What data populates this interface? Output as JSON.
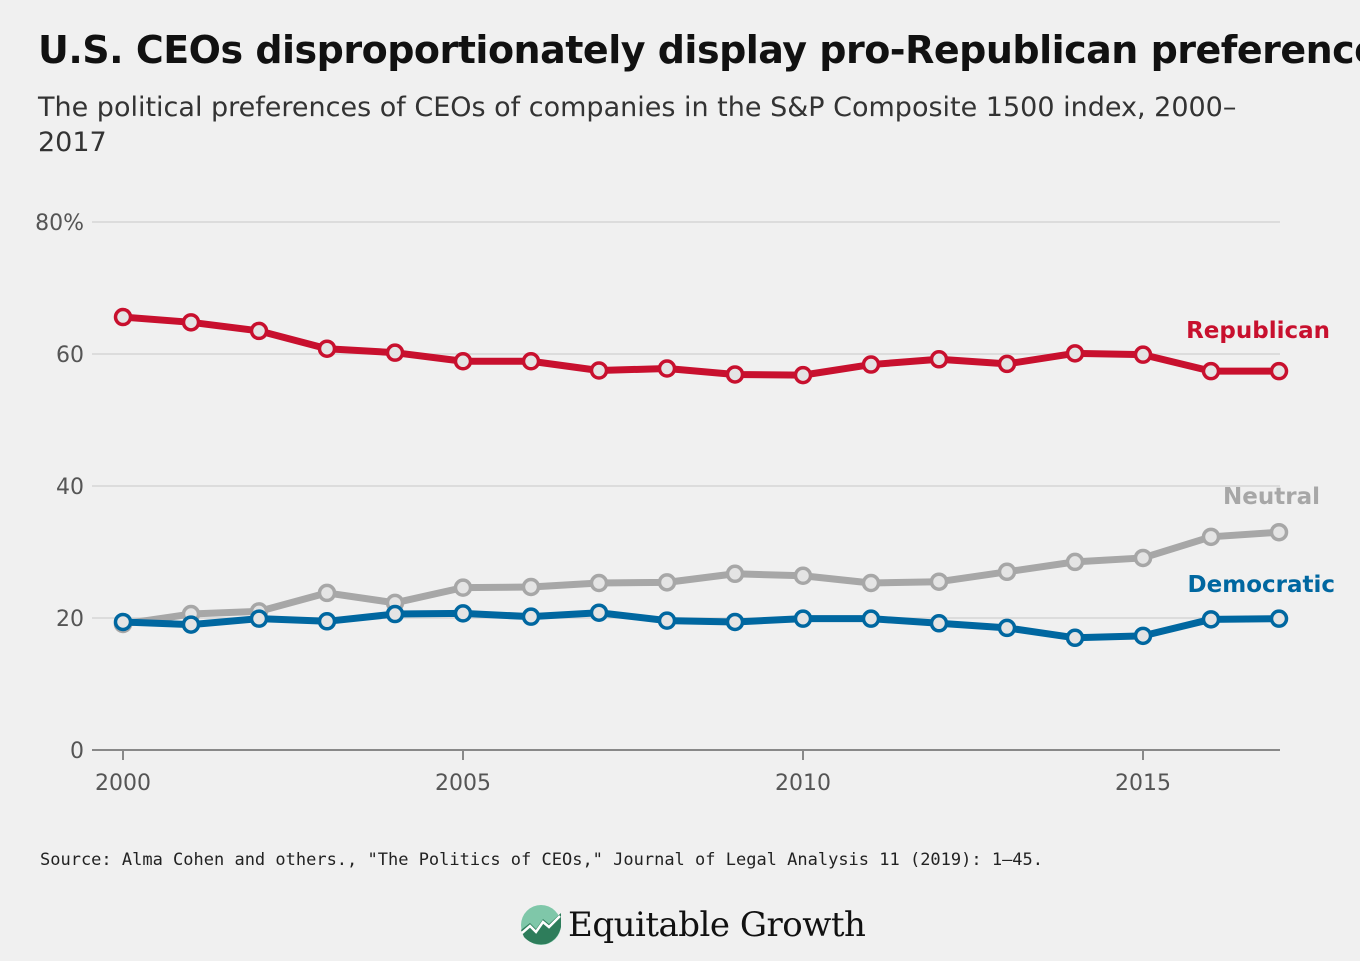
{
  "title": "U.S. CEOs disproportionately display pro-Republican preferences",
  "subtitle": "The political preferences of CEOs of companies in the S&P Composite 1500 index, 2000–2017",
  "source": "Source: Alma Cohen and others., \"The Politics of CEOs,\" Journal of Legal Analysis 11 (2019): 1–45.",
  "logo": {
    "text": "Equitable Growth",
    "icon": "equitable-growth-logo-icon"
  },
  "colors": {
    "republican": "#c8102e",
    "neutral": "#a7a7a7",
    "democratic": "#0067a0",
    "grid": "#d6d6d6",
    "marker_fill": "#e4e4e4"
  },
  "chart_data": {
    "type": "line",
    "x": [
      2000,
      2001,
      2002,
      2003,
      2004,
      2005,
      2006,
      2007,
      2008,
      2009,
      2010,
      2011,
      2012,
      2013,
      2014,
      2015,
      2016,
      2017
    ],
    "xticks": [
      2000,
      2005,
      2010,
      2015
    ],
    "xtick_labels": [
      "2000",
      "2005",
      "2010",
      "2015"
    ],
    "yticks": [
      0,
      20,
      40,
      60,
      80
    ],
    "ytick_labels": [
      "0",
      "20",
      "40",
      "60",
      "80%"
    ],
    "ylim": [
      0,
      80
    ],
    "xlim": [
      2000,
      2017
    ],
    "grid": true,
    "legend": "inline-labels",
    "series": [
      {
        "name": "Republican",
        "key": "republican",
        "values": [
          65.6,
          64.8,
          63.5,
          60.8,
          60.2,
          58.9,
          58.9,
          57.5,
          57.8,
          56.9,
          56.8,
          58.4,
          59.2,
          58.5,
          60.1,
          59.9,
          57.4,
          57.4
        ]
      },
      {
        "name": "Neutral",
        "key": "neutral",
        "values": [
          19.1,
          20.6,
          21.0,
          23.8,
          22.3,
          24.6,
          24.7,
          25.3,
          25.4,
          26.7,
          26.4,
          25.3,
          25.5,
          27.0,
          28.5,
          29.1,
          32.3,
          33.0
        ]
      },
      {
        "name": "Democratic",
        "key": "democratic",
        "values": [
          19.4,
          19.0,
          19.9,
          19.5,
          20.6,
          20.7,
          20.2,
          20.8,
          19.6,
          19.4,
          19.9,
          19.9,
          19.2,
          18.5,
          17.0,
          17.3,
          19.8,
          19.9
        ]
      }
    ]
  }
}
